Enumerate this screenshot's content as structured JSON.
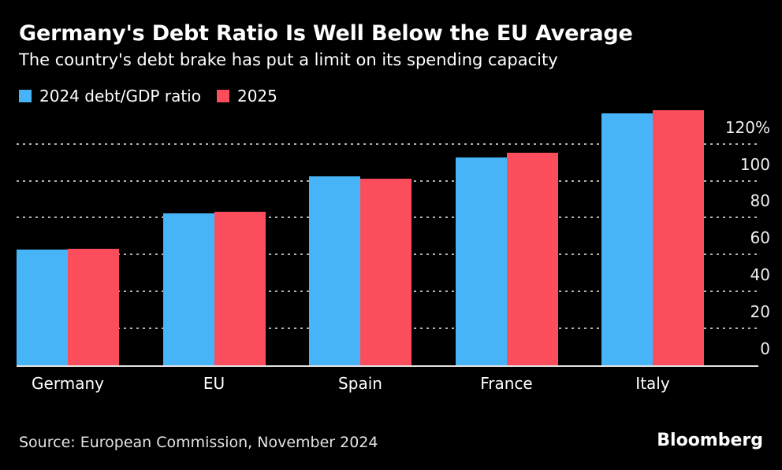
{
  "title": "Germany's Debt Ratio Is Well Below the EU Average",
  "subtitle": "The country's debt brake has put a limit on its spending capacity",
  "source": "Source: European Commission, November 2024",
  "brand": "Bloomberg",
  "colors": {
    "background": "#000000",
    "series_2024": "#47B4F8",
    "series_2025": "#FB4D5C",
    "gridline": "#B0B0B0",
    "baseline": "#E2E2E2",
    "text": "#FFFFFF"
  },
  "chart_data": {
    "type": "bar",
    "title": "Germany's Debt Ratio Is Well Below the EU Average",
    "subtitle": "The country's debt brake has put a limit on its spending capacity",
    "categories": [
      "Germany",
      "EU",
      "Spain",
      "France",
      "Italy"
    ],
    "series": [
      {
        "name": "2024 debt/GDP ratio",
        "color": "#47B4F8",
        "values": [
          62.6,
          82.4,
          102.4,
          112.7,
          136.6
        ]
      },
      {
        "name": "2025",
        "color": "#FB4D5C",
        "values": [
          63.1,
          83.0,
          101.2,
          115.3,
          138.2
        ]
      }
    ],
    "xlabel": "",
    "ylabel": "",
    "y_ticks": [
      0,
      20,
      40,
      60,
      80,
      100,
      120
    ],
    "y_tick_labels": [
      "0",
      "20",
      "40",
      "60",
      "80",
      "100",
      "120%"
    ],
    "ylim": [
      0,
      140
    ],
    "axis_side": "right",
    "grid": "dotted-horizontal",
    "legend_position": "top-left"
  }
}
